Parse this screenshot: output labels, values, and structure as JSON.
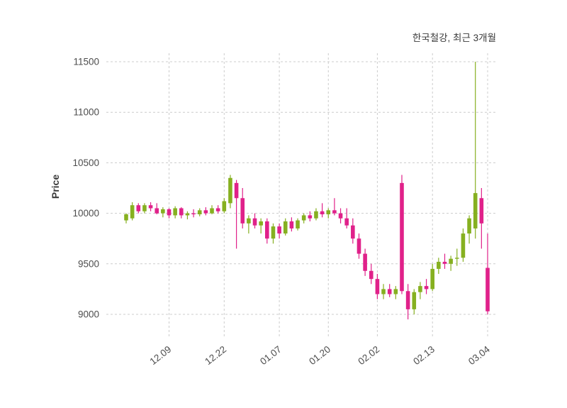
{
  "title": "한국철강, 최근 3개월",
  "ylabel": "Price",
  "chart_data": {
    "type": "candlestick",
    "title": "한국철강, 최근 3개월",
    "ylabel": "Price",
    "grid": true,
    "ylim": [
      8775,
      11585
    ],
    "y_ticks": [
      9000,
      9500,
      10000,
      10500,
      11000,
      11500
    ],
    "x_ticks": [
      {
        "label": "12.09",
        "index": 7
      },
      {
        "label": "12.22",
        "index": 16
      },
      {
        "label": "01.07",
        "index": 25
      },
      {
        "label": "01.20",
        "index": 33
      },
      {
        "label": "02.02",
        "index": 41
      },
      {
        "label": "02.13",
        "index": 50
      },
      {
        "label": "03.04",
        "index": 59
      }
    ],
    "colors": {
      "up": "#86b020",
      "down": "#e0218a",
      "grid": "#cccccc",
      "tick_text": "#4d4d4d",
      "title_text": "#3a3a3a"
    },
    "candles_format": [
      "open",
      "high",
      "low",
      "close"
    ],
    "candles": [
      [
        9930,
        10000,
        9900,
        9990
      ],
      [
        9950,
        10110,
        9930,
        10080
      ],
      [
        10080,
        10100,
        10000,
        10020
      ],
      [
        10020,
        10100,
        10000,
        10080
      ],
      [
        10080,
        10110,
        10020,
        10050
      ],
      [
        10050,
        10100,
        9990,
        10000
      ],
      [
        10000,
        10060,
        9960,
        10040
      ],
      [
        10040,
        10050,
        9950,
        9980
      ],
      [
        9980,
        10070,
        9950,
        10050
      ],
      [
        10050,
        10060,
        9950,
        9980
      ],
      [
        9980,
        10020,
        9940,
        10000
      ],
      [
        10000,
        10040,
        9960,
        9990
      ],
      [
        9990,
        10050,
        9970,
        10030
      ],
      [
        10030,
        10060,
        9980,
        10000
      ],
      [
        10000,
        10080,
        9990,
        10050
      ],
      [
        10050,
        10080,
        10000,
        10020
      ],
      [
        10020,
        10150,
        10000,
        10120
      ],
      [
        10100,
        10380,
        10050,
        10350
      ],
      [
        10300,
        10330,
        9650,
        10150
      ],
      [
        10150,
        10250,
        9850,
        9900
      ],
      [
        9900,
        9980,
        9800,
        9950
      ],
      [
        9950,
        10000,
        9850,
        9880
      ],
      [
        9880,
        9950,
        9800,
        9920
      ],
      [
        9920,
        9950,
        9700,
        9750
      ],
      [
        9750,
        9900,
        9700,
        9870
      ],
      [
        9870,
        9900,
        9750,
        9800
      ],
      [
        9800,
        9950,
        9780,
        9920
      ],
      [
        9920,
        9960,
        9820,
        9850
      ],
      [
        9850,
        9950,
        9830,
        9930
      ],
      [
        9930,
        10000,
        9900,
        9980
      ],
      [
        9980,
        10020,
        9920,
        9950
      ],
      [
        9950,
        10050,
        9930,
        10020
      ],
      [
        10020,
        10100,
        9960,
        9990
      ],
      [
        9990,
        10050,
        9950,
        10030
      ],
      [
        10030,
        10150,
        9980,
        10000
      ],
      [
        10000,
        10050,
        9900,
        9950
      ],
      [
        9950,
        10050,
        9850,
        9880
      ],
      [
        9880,
        9950,
        9700,
        9750
      ],
      [
        9750,
        9800,
        9550,
        9600
      ],
      [
        9600,
        9650,
        9380,
        9430
      ],
      [
        9430,
        9500,
        9300,
        9350
      ],
      [
        9350,
        9400,
        9150,
        9200
      ],
      [
        9200,
        9300,
        9150,
        9250
      ],
      [
        9250,
        9300,
        9170,
        9200
      ],
      [
        9200,
        9280,
        9150,
        9250
      ],
      [
        10300,
        10380,
        9200,
        9230
      ],
      [
        9230,
        9300,
        8950,
        9050
      ],
      [
        9050,
        9250,
        9000,
        9220
      ],
      [
        9220,
        9320,
        9150,
        9280
      ],
      [
        9280,
        9350,
        9200,
        9250
      ],
      [
        9250,
        9500,
        9230,
        9450
      ],
      [
        9450,
        9560,
        9400,
        9520
      ],
      [
        9520,
        9600,
        9450,
        9500
      ],
      [
        9500,
        9580,
        9430,
        9550
      ],
      [
        9550,
        9650,
        9480,
        9560
      ],
      [
        9560,
        9850,
        9520,
        9800
      ],
      [
        9800,
        9980,
        9700,
        9950
      ],
      [
        9850,
        11500,
        9750,
        10200
      ],
      [
        10150,
        10250,
        9650,
        9900
      ],
      [
        9460,
        9800,
        9000,
        9030
      ]
    ]
  }
}
